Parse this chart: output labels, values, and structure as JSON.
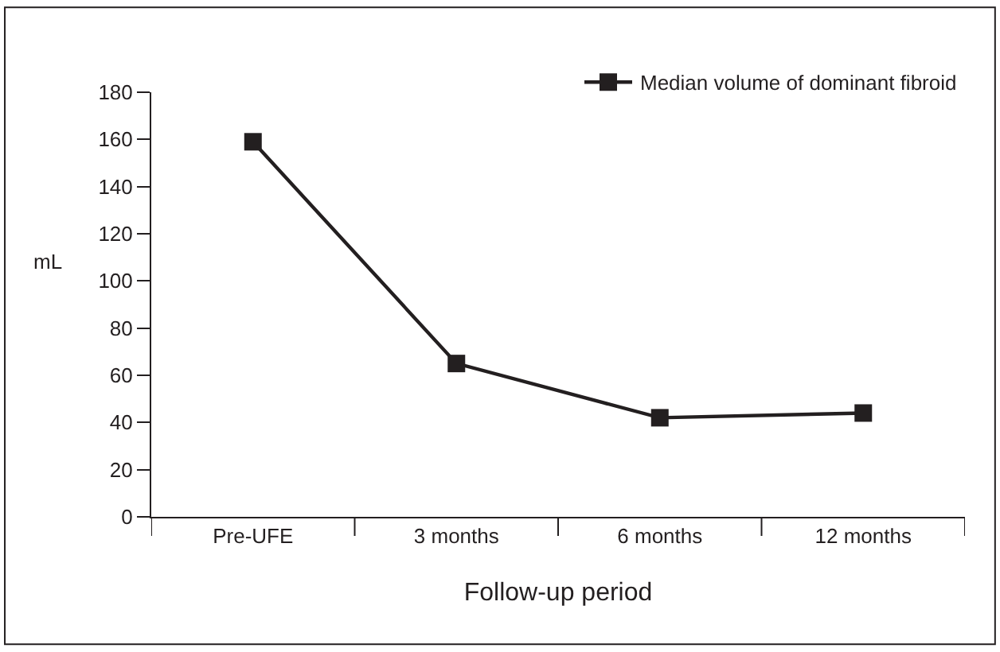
{
  "chart_data": {
    "type": "line",
    "xlabel": "Follow-up period",
    "ylabel": "mL",
    "categories": [
      "Pre-UFE",
      "3 months",
      "6 months",
      "12 months"
    ],
    "series": [
      {
        "name": "Median volume of dominant fibroid",
        "color": "#231f20",
        "values": [
          159,
          65,
          42,
          44
        ]
      }
    ],
    "ylim": [
      0,
      180
    ],
    "yticks": [
      0,
      20,
      40,
      60,
      80,
      100,
      120,
      140,
      160,
      180
    ],
    "legend": "top right",
    "marker": "square",
    "line_style": "solid"
  }
}
